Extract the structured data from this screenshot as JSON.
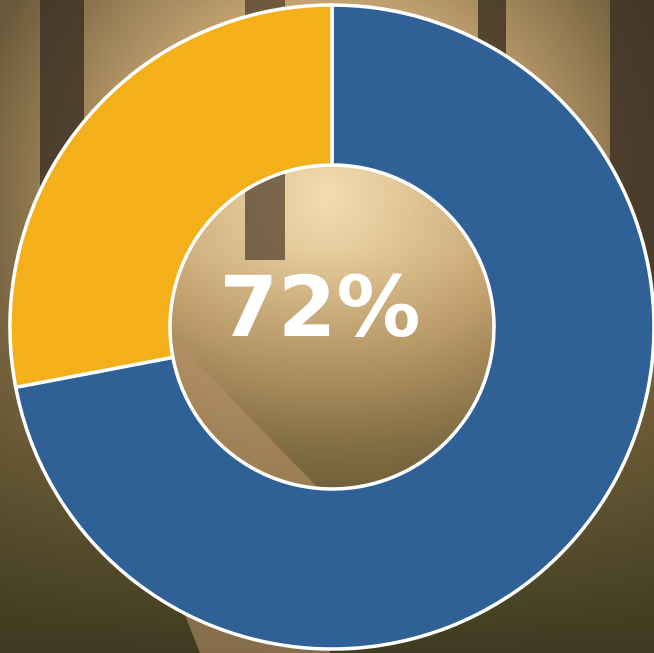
{
  "chart_data": {
    "type": "donut",
    "values": [
      72,
      28
    ],
    "colors": [
      "#2f6096",
      "#f4b01a"
    ],
    "center_label": "72%"
  }
}
